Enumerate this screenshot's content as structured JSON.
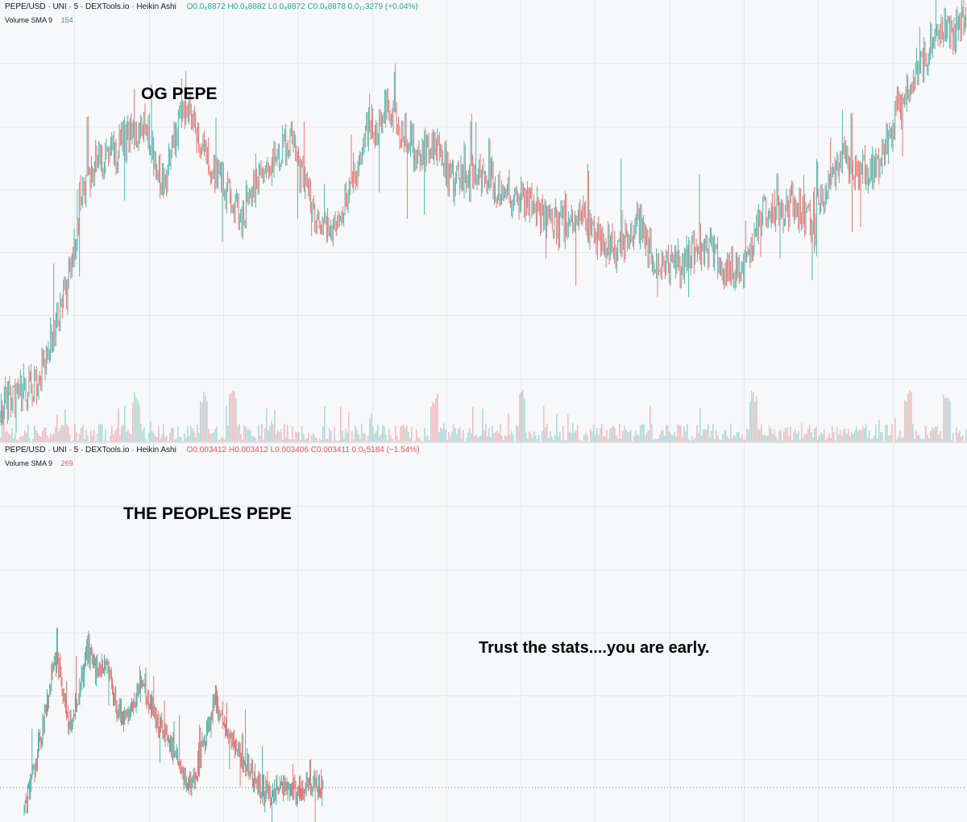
{
  "annotations": {
    "top_title": "OG PEPE",
    "bottom_title": "THE PEOPLES PEPE",
    "note": "Trust the stats....you are early."
  },
  "top_panel": {
    "symbol": "PEPE/USD · UNI · 5 · DEXTools.io · Heikin Ashi",
    "open": "O0.0₈8872",
    "high": "H0.0₈8882",
    "low": "L0.0₈8872",
    "close": "C0.0₈8878",
    "change": "0.0₁₂3279 (+0.04%)",
    "volume_label": "Volume SMA 9",
    "volume_value": "154"
  },
  "bottom_panel": {
    "symbol": "PEPE/USD · UNI · 5 · DEXTools.io · Heikin Ashi",
    "open": "O0.003412",
    "high": "H0.003412",
    "low": "L0.003406",
    "close": "C0.003411",
    "change": "0.0₅5184 (−1.54%)",
    "volume_label": "Volume SMA 9",
    "volume_value": "269"
  },
  "colors": {
    "up": "#26a69a",
    "down": "#ef5350",
    "grid": "#e6e9ef",
    "background": "#f7f8fa",
    "annotation_text": "#000000"
  },
  "chart_data": [
    {
      "type": "candlestick",
      "name": "OG PEPE",
      "style": "Heikin Ashi",
      "timeframe": "5",
      "grid": true,
      "price_shape": [
        [
          0,
          0.04
        ],
        [
          0.04,
          0.1
        ],
        [
          0.07,
          0.33
        ],
        [
          0.09,
          0.6
        ],
        [
          0.12,
          0.66
        ],
        [
          0.15,
          0.72
        ],
        [
          0.17,
          0.57
        ],
        [
          0.19,
          0.78
        ],
        [
          0.21,
          0.65
        ],
        [
          0.23,
          0.58
        ],
        [
          0.25,
          0.5
        ],
        [
          0.27,
          0.6
        ],
        [
          0.3,
          0.68
        ],
        [
          0.33,
          0.48
        ],
        [
          0.35,
          0.47
        ],
        [
          0.38,
          0.7
        ],
        [
          0.4,
          0.76
        ],
        [
          0.43,
          0.66
        ],
        [
          0.45,
          0.67
        ],
        [
          0.47,
          0.58
        ],
        [
          0.5,
          0.6
        ],
        [
          0.53,
          0.54
        ],
        [
          0.55,
          0.53
        ],
        [
          0.58,
          0.47
        ],
        [
          0.6,
          0.51
        ],
        [
          0.62,
          0.44
        ],
        [
          0.64,
          0.42
        ],
        [
          0.66,
          0.48
        ],
        [
          0.68,
          0.38
        ],
        [
          0.71,
          0.39
        ],
        [
          0.73,
          0.43
        ],
        [
          0.75,
          0.37
        ],
        [
          0.77,
          0.38
        ],
        [
          0.79,
          0.51
        ],
        [
          0.82,
          0.52
        ],
        [
          0.84,
          0.5
        ],
        [
          0.87,
          0.63
        ],
        [
          0.89,
          0.6
        ],
        [
          0.91,
          0.62
        ],
        [
          0.93,
          0.76
        ],
        [
          0.95,
          0.83
        ],
        [
          0.97,
          0.97
        ],
        [
          0.985,
          0.93
        ],
        [
          1.0,
          0.99
        ]
      ],
      "volume_spikes_at": [
        0.14,
        0.21,
        0.24,
        0.45,
        0.54,
        0.78,
        0.94,
        0.98
      ]
    },
    {
      "type": "candlestick",
      "name": "THE PEOPLES PEPE",
      "style": "Heikin Ashi",
      "timeframe": "5",
      "grid": true,
      "last_price_line": true,
      "price_shape": [
        [
          0,
          0.0
        ],
        [
          0.03,
          0.16
        ],
        [
          0.08,
          0.56
        ],
        [
          0.1,
          0.78
        ],
        [
          0.12,
          0.72
        ],
        [
          0.15,
          0.4
        ],
        [
          0.18,
          0.55
        ],
        [
          0.21,
          0.82
        ],
        [
          0.24,
          0.7
        ],
        [
          0.27,
          0.76
        ],
        [
          0.3,
          0.57
        ],
        [
          0.33,
          0.48
        ],
        [
          0.36,
          0.53
        ],
        [
          0.39,
          0.64
        ],
        [
          0.43,
          0.52
        ],
        [
          0.47,
          0.36
        ],
        [
          0.5,
          0.31
        ],
        [
          0.53,
          0.18
        ],
        [
          0.55,
          0.1
        ],
        [
          0.58,
          0.2
        ],
        [
          0.61,
          0.38
        ],
        [
          0.64,
          0.55
        ],
        [
          0.67,
          0.44
        ],
        [
          0.71,
          0.3
        ],
        [
          0.75,
          0.2
        ],
        [
          0.79,
          0.11
        ],
        [
          0.83,
          0.07
        ],
        [
          0.87,
          0.1
        ],
        [
          0.91,
          0.06
        ],
        [
          0.95,
          0.12
        ],
        [
          1.0,
          0.08
        ]
      ]
    }
  ]
}
